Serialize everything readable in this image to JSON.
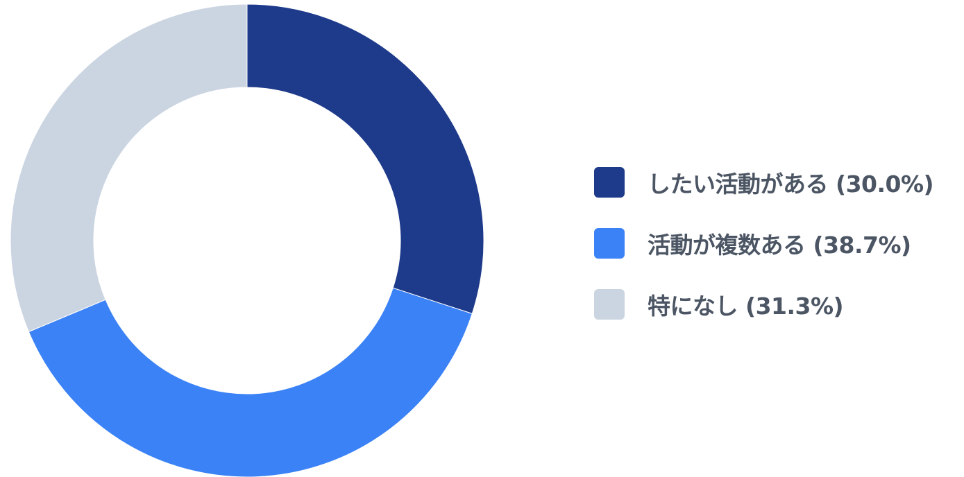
{
  "chart_data": {
    "type": "pie",
    "donut": true,
    "categories": [
      "したい活動がある",
      "活動が複数ある",
      "特になし"
    ],
    "values": [
      30.0,
      38.7,
      31.3
    ],
    "colors": [
      "#1e3a8a",
      "#3b82f6",
      "#cbd5e1"
    ],
    "legend_position": "right",
    "legend_labels": [
      "したい活動がある (30.0%)",
      "活動が複数ある (38.7%)",
      "特になし (31.3%)"
    ]
  }
}
